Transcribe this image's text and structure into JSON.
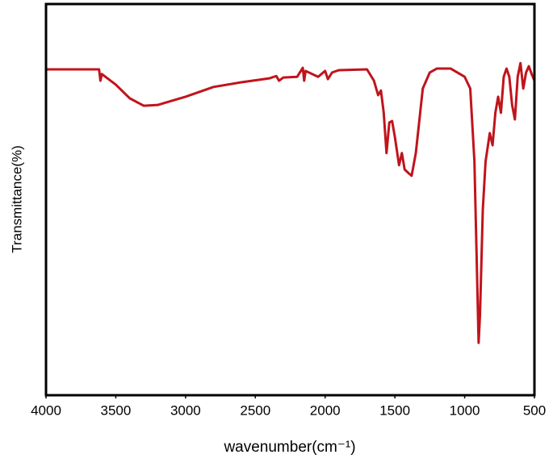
{
  "chart_data": {
    "type": "line",
    "x_label": "wavenumber(cm⁻¹)",
    "y_label": "Transmittance(%)",
    "xlim": [
      4000,
      500
    ],
    "xticks": [
      4000,
      3500,
      3000,
      2500,
      2000,
      1500,
      1000,
      500
    ],
    "ylim": [
      0,
      100
    ],
    "series": [
      {
        "color": "#c0141c",
        "x": [
          4000,
          3700,
          3620,
          3610,
          3600,
          3500,
          3400,
          3300,
          3200,
          3000,
          2800,
          2600,
          2400,
          2350,
          2330,
          2300,
          2200,
          2160,
          2150,
          2140,
          2050,
          2000,
          1980,
          1950,
          1900,
          1700,
          1650,
          1620,
          1600,
          1580,
          1560,
          1540,
          1520,
          1500,
          1470,
          1450,
          1430,
          1400,
          1380,
          1350,
          1300,
          1250,
          1200,
          1100,
          1000,
          960,
          930,
          910,
          900,
          890,
          870,
          850,
          820,
          800,
          780,
          760,
          740,
          720,
          700,
          680,
          660,
          640,
          620,
          600,
          580,
          560,
          540,
          520,
          500
        ],
        "values": [
          83.3,
          83.3,
          83.3,
          80.4,
          82.1,
          79.4,
          75.9,
          74.0,
          74.2,
          76.3,
          78.8,
          80.0,
          81.0,
          81.6,
          80.4,
          81.2,
          81.4,
          83.7,
          80.4,
          82.9,
          81.4,
          82.9,
          80.8,
          82.5,
          83.1,
          83.3,
          80.4,
          76.7,
          77.9,
          72.2,
          61.9,
          69.7,
          70.1,
          66.0,
          58.8,
          61.9,
          57.7,
          56.7,
          56.1,
          61.9,
          78.4,
          82.5,
          83.5,
          83.5,
          81.4,
          78.4,
          59.8,
          28.9,
          13.4,
          20.6,
          47.4,
          59.8,
          67.0,
          63.9,
          72.2,
          76.3,
          72.2,
          81.4,
          83.5,
          81.4,
          74.2,
          70.5,
          81.4,
          84.9,
          78.4,
          82.5,
          84.1,
          82.1,
          80.4
        ]
      }
    ]
  }
}
